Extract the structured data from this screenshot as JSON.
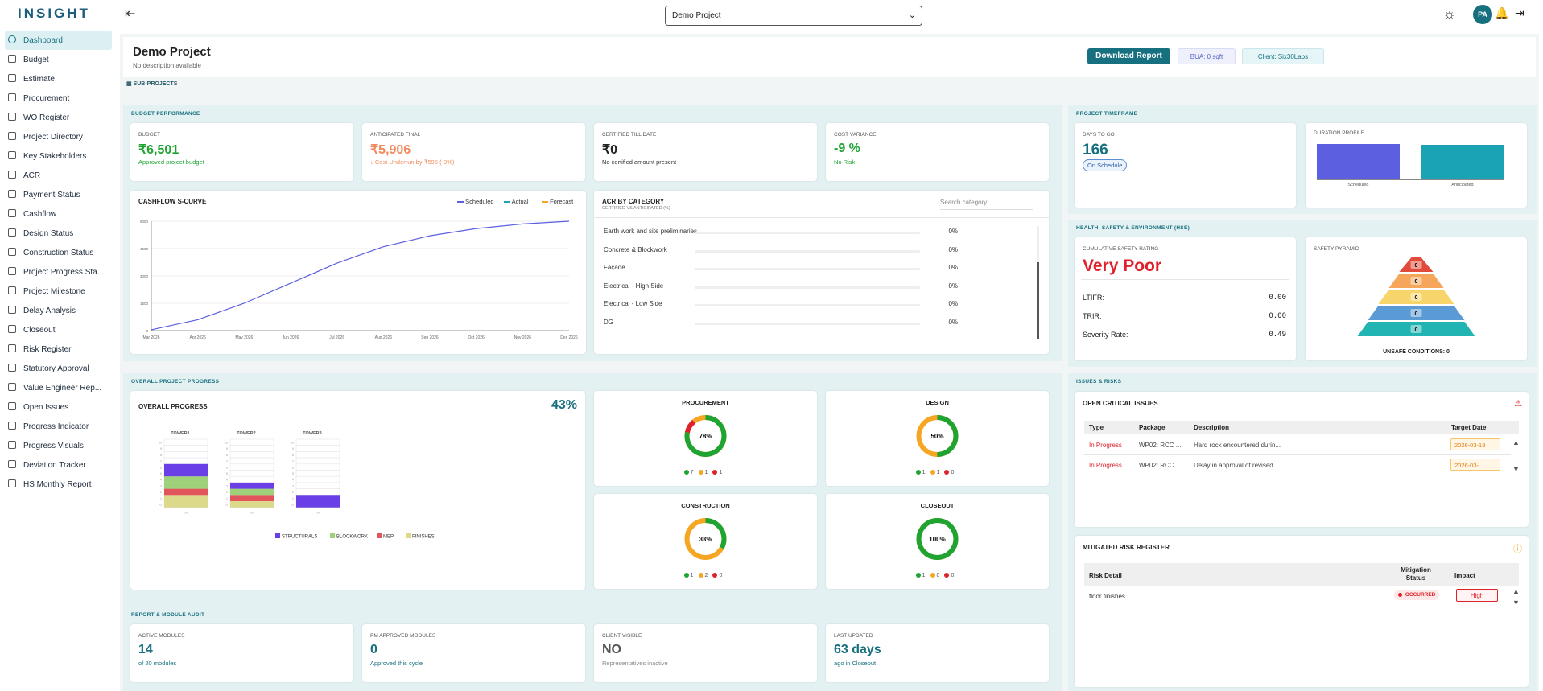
{
  "top": {
    "logo": "INSIGHT",
    "project_select": "Demo Project",
    "avatar": "PA"
  },
  "sidebar": [
    "Dashboard",
    "Budget",
    "Estimate",
    "Procurement",
    "WO Register",
    "Project Directory",
    "Key Stakeholders",
    "ACR",
    "Payment Status",
    "Cashflow",
    "Design Status",
    "Construction Status",
    "Project Progress Sta...",
    "Project Milestone",
    "Delay Analysis",
    "Closeout",
    "Risk Register",
    "Statutory Approval",
    "Value Engineer Rep...",
    "Open Issues",
    "Progress Indicator",
    "Progress Visuals",
    "Deviation Tracker",
    "HS Monthly Report"
  ],
  "header": {
    "title": "Demo Project",
    "desc": "No description available",
    "download": "Download Report",
    "bua": "BUA: 0 sqft",
    "client": "Client: Six30Labs",
    "subprojects": "SUB-PROJECTS"
  },
  "budget": {
    "section": "BUDGET PERFORMANCE",
    "cards": [
      {
        "label": "BUDGET",
        "value": "₹6,501",
        "sub": "Approved project budget",
        "color": "#1fa331"
      },
      {
        "label": "ANTICIPATED FINAL",
        "value": "₹5,906",
        "sub": "↓ Cost Underrun by ₹595 (-9%)",
        "color": "#f08a5d"
      },
      {
        "label": "CERTIFIED TILL DATE",
        "value": "₹0",
        "sub": "No certified amount present",
        "color": "#111"
      },
      {
        "label": "COST VARIANCE",
        "value": "-9 %",
        "sub": "No Risk",
        "color": "#1fa331"
      }
    ]
  },
  "scurve": {
    "title": "CASHFLOW S-CURVE",
    "legend": [
      "Scheduled",
      "Actual",
      "Forecast"
    ],
    "legend_colors": [
      "#5b5fe0",
      "#1aa3b2",
      "#f5a623"
    ]
  },
  "chart_data": {
    "type": "line",
    "title": "CASHFLOW S-CURVE",
    "x": [
      "Mar 2026",
      "Apr 2026",
      "May 2026",
      "Jun 2026",
      "Jul 2026",
      "Aug 2026",
      "Sep 2026",
      "Oct 2026",
      "Nov 2026",
      "Dec 2026"
    ],
    "yticks": [
      "0",
      "1500",
      "3000",
      "4500",
      "6000"
    ],
    "ylim": [
      0,
      6000
    ],
    "series": [
      {
        "name": "Scheduled",
        "values": [
          50,
          600,
          1500,
          2600,
          3700,
          4600,
          5200,
          5600,
          5850,
          6000
        ]
      }
    ]
  },
  "acr": {
    "title": "ACR BY CATEGORY",
    "sub": "CERTIFIED VS ANTICIPATED (%)",
    "search": "Search category...",
    "rows": [
      {
        "name": "Earth work and site preliminaries",
        "pct": "0%"
      },
      {
        "name": "Concrete & Blockwork",
        "pct": "0%"
      },
      {
        "name": "Façade",
        "pct": "0%"
      },
      {
        "name": "Electrical - High Side",
        "pct": "0%"
      },
      {
        "name": "Electrical - Low Side",
        "pct": "0%"
      },
      {
        "name": "DG",
        "pct": "0%"
      }
    ]
  },
  "timeframe": {
    "section": "PROJECT TIMEFRAME",
    "days_label": "DAYS TO GO",
    "days": "166",
    "status": "On Schedule",
    "profile": "DURATION PROFILE",
    "bars": [
      "Scheduled",
      "Anticipated"
    ]
  },
  "hse": {
    "section": "HEALTH, SAFETY & ENVIRONMENT (HSE)",
    "rating_label": "CUMULATIVE SAFETY RATING",
    "rating": "Very Poor",
    "metrics": [
      {
        "k": "LTIFR:",
        "v": "0.00"
      },
      {
        "k": "TRIR:",
        "v": "0.00"
      },
      {
        "k": "Severity Rate:",
        "v": "0.49"
      }
    ],
    "pyramid_title": "SAFETY PYRAMID",
    "pyramid": [
      "0",
      "0",
      "0",
      "0",
      "0"
    ],
    "unsafe": "UNSAFE CONDITIONS: 0"
  },
  "progress": {
    "section": "OVERALL PROJECT PROGRESS",
    "title": "OVERALL PROGRESS",
    "pct": "43%",
    "towers": [
      "TOWER1",
      "TOWER2",
      "TOWER3"
    ],
    "legend": [
      "STRUCTURALS",
      "BLOCKWORK",
      "MEP",
      "FINISHES"
    ]
  },
  "donuts": [
    {
      "title": "PROCUREMENT",
      "pct": "78%",
      "value": 78,
      "dots": [
        "7",
        "1",
        "1"
      ]
    },
    {
      "title": "DESIGN",
      "pct": "50%",
      "value": 50,
      "dots": [
        "1",
        "1",
        "0"
      ]
    },
    {
      "title": "CONSTRUCTION",
      "pct": "33%",
      "value": 33,
      "dots": [
        "1",
        "2",
        "0"
      ]
    },
    {
      "title": "CLOSEOUT",
      "pct": "100%",
      "value": 100,
      "dots": [
        "1",
        "0",
        "0"
      ]
    }
  ],
  "issues": {
    "section": "ISSUES & RISKS",
    "open_title": "OPEN CRITICAL ISSUES",
    "cols": [
      "Type",
      "Package",
      "Description",
      "Target Date"
    ],
    "rows": [
      {
        "type": "In Progress",
        "pkg": "WP02: RCC ...",
        "desc": "Hard rock encountered durin...",
        "date": "2026-03-18"
      },
      {
        "type": "In Progress",
        "pkg": "WP02: RCC ...",
        "desc": "Delay in approval of revised ...",
        "date": "2026-03-..."
      }
    ],
    "risk_title": "MITIGATED RISK REGISTER",
    "risk_cols": [
      "Risk Detail",
      "Mitigation Status",
      "Impact"
    ],
    "risk_rows": [
      {
        "detail": "floor finishes",
        "status": "OCCURRED",
        "impact": "High"
      }
    ]
  },
  "audit": {
    "section": "REPORT & MODULE AUDIT",
    "cards": [
      {
        "label": "ACTIVE MODULES",
        "value": "14",
        "sub": "of 20 modules",
        "color": "#17707f"
      },
      {
        "label": "PM APPROVED MODULES",
        "value": "0",
        "sub": "Approved this cycle",
        "color": "#17707f"
      },
      {
        "label": "CLIENT VISIBLE",
        "value": "NO",
        "sub": "Representatives inactive",
        "color": "#555"
      },
      {
        "label": "LAST UPDATED",
        "value": "63 days",
        "sub": "ago in Closeout",
        "color": "#17707f"
      }
    ]
  }
}
